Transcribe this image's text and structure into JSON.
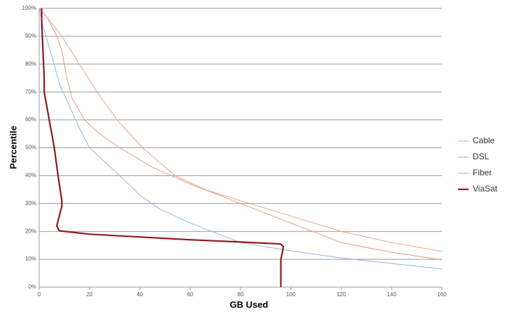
{
  "chart_data": {
    "type": "line",
    "x_label": "GB Used",
    "y_label": "Percentile",
    "xlim": [
      0,
      160
    ],
    "xticks": [
      0,
      20,
      40,
      60,
      80,
      100,
      120,
      140,
      160
    ],
    "ylim": [
      0,
      100
    ],
    "yticks": [
      {
        "value": 0,
        "label": "0%"
      },
      {
        "value": 10,
        "label": "10%"
      },
      {
        "value": 20,
        "label": "20%"
      },
      {
        "value": 30,
        "label": "30%"
      },
      {
        "value": 40,
        "label": "40%"
      },
      {
        "value": 50,
        "label": "50%"
      },
      {
        "value": 60,
        "label": "60%"
      },
      {
        "value": 70,
        "label": "70%"
      },
      {
        "value": 80,
        "label": "80%"
      },
      {
        "value": 90,
        "label": "90%"
      },
      {
        "value": 100,
        "label": "100%"
      }
    ],
    "grid": true,
    "legend": "right",
    "series": [
      {
        "name": "Cable",
        "color": "#e9a48f",
        "width": 1,
        "x": [
          0,
          3,
          9,
          16,
          23,
          31,
          41,
          54,
          66,
          80,
          100,
          120,
          140,
          160
        ],
        "values": [
          100,
          97,
          90,
          80,
          70,
          60,
          50,
          40,
          35,
          31,
          25.5,
          20,
          16,
          12.8
        ]
      },
      {
        "name": "DSL",
        "color": "#8fb5e3",
        "width": 1,
        "x": [
          0,
          2,
          5,
          8,
          12,
          16,
          20,
          26,
          32,
          40,
          48,
          60,
          80,
          100,
          120,
          140,
          160
        ],
        "values": [
          100,
          92,
          83,
          73,
          65,
          57,
          50,
          45,
          40,
          33,
          28,
          23,
          16,
          13,
          10.5,
          8.5,
          6.5
        ]
      },
      {
        "name": "Fiber",
        "color": "#e39a82",
        "width": 1,
        "x": [
          0,
          3,
          7,
          9,
          11,
          13,
          18,
          24,
          32,
          45,
          60,
          80,
          100,
          120,
          140,
          160
        ],
        "values": [
          100,
          97,
          90,
          85,
          75,
          68,
          60,
          55,
          50,
          43,
          37,
          30,
          23,
          16,
          12.5,
          9.8
        ]
      },
      {
        "name": "ViaSat",
        "color": "#8b1a1a",
        "width": 2.2,
        "x": [
          1,
          1,
          1.5,
          2,
          2,
          4,
          6,
          7.5,
          9,
          9,
          7,
          8,
          20,
          40,
          60,
          80,
          96,
          97,
          96.5,
          96,
          96,
          96
        ],
        "values": [
          100,
          95,
          85,
          75,
          70,
          60,
          50,
          40,
          31,
          29,
          22,
          20.2,
          19,
          18,
          17,
          16.2,
          15.5,
          14.5,
          12,
          10,
          8,
          0
        ]
      }
    ]
  }
}
